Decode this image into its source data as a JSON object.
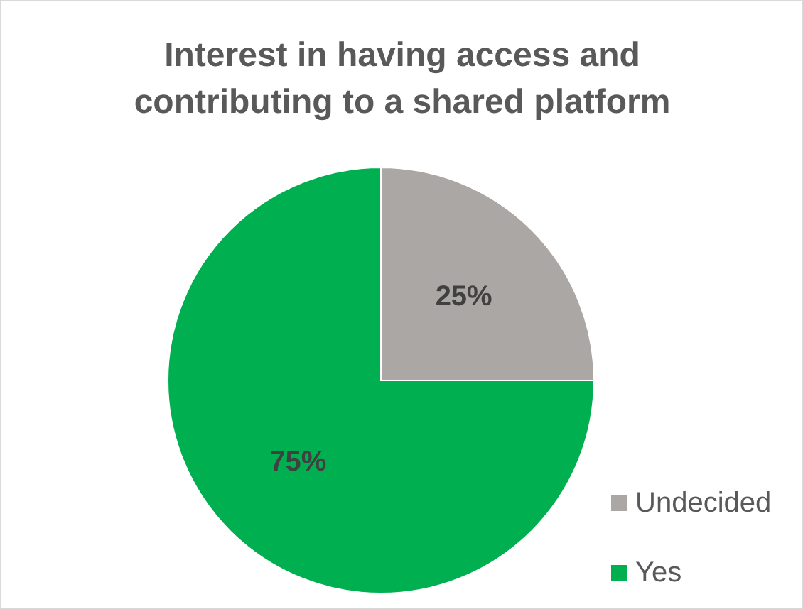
{
  "chart_data": {
    "type": "pie",
    "title": "Interest in having access and contributing to a shared platform",
    "categories": [
      "Undecided",
      "Yes"
    ],
    "values": [
      25,
      75
    ],
    "colors": [
      "#aba7a5",
      "#00b050"
    ],
    "value_labels": [
      "25%",
      "75%"
    ],
    "legend": "bottom right"
  }
}
